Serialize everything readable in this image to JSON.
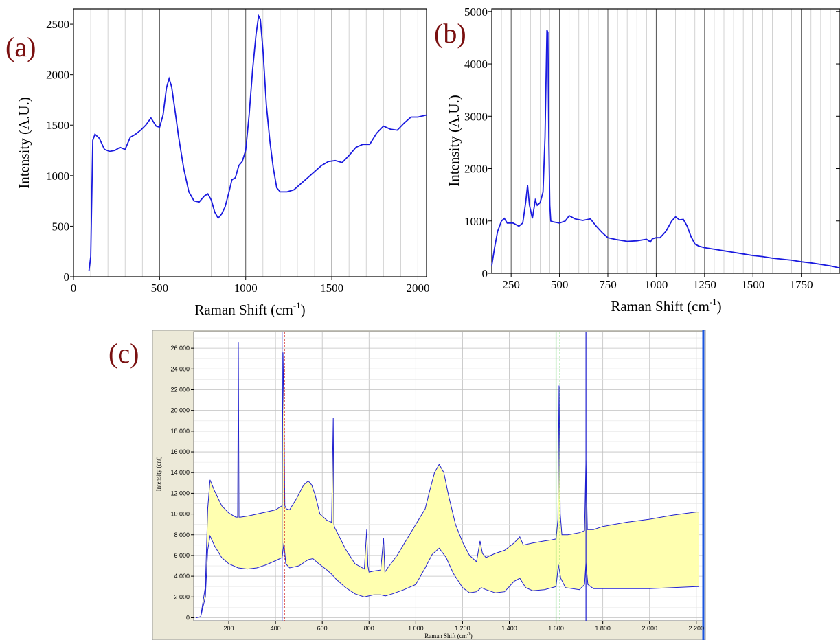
{
  "chart_data": [
    {
      "panel": "(a)",
      "type": "line",
      "xlabel": "Raman Shift (cm",
      "xlabel_sup": "-1",
      "xlabel_close": ")",
      "ylabel": "Intensity (A.U.)",
      "xlim": [
        0,
        2050
      ],
      "ylim": [
        0,
        2650
      ],
      "xticks": [
        0,
        500,
        1000,
        1500,
        2000
      ],
      "yticks": [
        0,
        500,
        1000,
        1500,
        2000,
        2500
      ],
      "grid": true,
      "series": [
        {
          "color": "#1a1adf",
          "x": [
            90,
            100,
            112,
            125,
            150,
            180,
            210,
            240,
            270,
            300,
            330,
            360,
            390,
            420,
            450,
            480,
            500,
            520,
            540,
            555,
            570,
            590,
            610,
            640,
            670,
            700,
            730,
            760,
            780,
            800,
            820,
            840,
            860,
            880,
            900,
            920,
            940,
            960,
            980,
            1000,
            1020,
            1040,
            1060,
            1075,
            1085,
            1100,
            1120,
            1140,
            1160,
            1180,
            1200,
            1220,
            1240,
            1280,
            1320,
            1360,
            1400,
            1440,
            1480,
            1520,
            1560,
            1600,
            1640,
            1680,
            1720,
            1760,
            1800,
            1840,
            1880,
            1920,
            1960,
            2000,
            2050
          ],
          "y": [
            60,
            200,
            1350,
            1410,
            1370,
            1260,
            1240,
            1250,
            1280,
            1260,
            1380,
            1410,
            1450,
            1500,
            1570,
            1490,
            1480,
            1600,
            1870,
            1960,
            1880,
            1640,
            1390,
            1070,
            840,
            750,
            740,
            800,
            820,
            760,
            640,
            580,
            620,
            690,
            820,
            960,
            980,
            1100,
            1140,
            1250,
            1600,
            2050,
            2400,
            2580,
            2550,
            2250,
            1700,
            1350,
            1080,
            880,
            840,
            840,
            840,
            860,
            920,
            980,
            1040,
            1100,
            1140,
            1150,
            1130,
            1200,
            1280,
            1310,
            1310,
            1420,
            1490,
            1460,
            1450,
            1520,
            1580,
            1580,
            1600
          ]
        }
      ]
    },
    {
      "panel": "(b)",
      "type": "line",
      "xlabel": "Raman Shift (cm",
      "xlabel_sup": "-1",
      "xlabel_close": ")",
      "ylabel": "Intensity (A.U.)",
      "xlim": [
        150,
        1950
      ],
      "ylim": [
        0,
        5050
      ],
      "xticks": [
        250,
        500,
        750,
        1000,
        1250,
        1500,
        1750
      ],
      "yticks": [
        0,
        1000,
        2000,
        3000,
        4000,
        5000
      ],
      "grid": true,
      "series": [
        {
          "color": "#1a1adf",
          "x": [
            150,
            165,
            180,
            200,
            215,
            230,
            260,
            290,
            310,
            325,
            335,
            345,
            360,
            375,
            385,
            400,
            415,
            425,
            435,
            440,
            445,
            450,
            455,
            470,
            500,
            530,
            550,
            580,
            620,
            660,
            690,
            720,
            750,
            800,
            850,
            900,
            950,
            970,
            980,
            1000,
            1020,
            1050,
            1080,
            1100,
            1120,
            1140,
            1160,
            1180,
            1200,
            1220,
            1250,
            1300,
            1350,
            1400,
            1450,
            1500,
            1550,
            1600,
            1650,
            1700,
            1750,
            1800,
            1850,
            1900,
            1950
          ],
          "y": [
            150,
            500,
            800,
            1000,
            1050,
            960,
            960,
            900,
            960,
            1350,
            1680,
            1300,
            1050,
            1400,
            1300,
            1350,
            1550,
            2600,
            4650,
            4600,
            2500,
            1300,
            1000,
            980,
            960,
            1000,
            1100,
            1040,
            1010,
            1040,
            900,
            780,
            680,
            640,
            610,
            620,
            650,
            600,
            660,
            680,
            680,
            800,
            1000,
            1080,
            1020,
            1030,
            900,
            700,
            560,
            520,
            490,
            460,
            430,
            400,
            370,
            340,
            320,
            290,
            270,
            250,
            220,
            200,
            170,
            140,
            100
          ]
        }
      ]
    },
    {
      "panel": "(c)",
      "type": "area",
      "xlabel": "Raman Shift (cm",
      "xlabel_sup": "-1",
      "xlabel_close": ")",
      "ylabel": "Intensity (cnt)",
      "xlim": [
        50,
        2230
      ],
      "ylim": [
        -300,
        27600
      ],
      "xticks": [
        200,
        400,
        600,
        800,
        1000,
        1200,
        1400,
        1600,
        1800,
        2000,
        2200
      ],
      "xtick_labels": [
        "200",
        "400",
        "600",
        "800",
        "1 000",
        "1 200",
        "1 400",
        "1 600",
        "1 800",
        "2 000",
        "2 200"
      ],
      "yticks": [
        0,
        2000,
        4000,
        6000,
        8000,
        10000,
        12000,
        14000,
        16000,
        18000,
        20000,
        22000,
        24000,
        26000
      ],
      "ytick_labels": [
        "0",
        "2 000",
        "4 000",
        "6 000",
        "8 000",
        "10 000",
        "12 000",
        "14 000",
        "16 000",
        "18 000",
        "20 000",
        "22 000",
        "24 000",
        "26 000"
      ],
      "grid": true,
      "fill_color": "#ffffb0",
      "line_color": "#2020d0",
      "markers": [
        {
          "x": 428,
          "color": "#2020d0",
          "style": "solid"
        },
        {
          "x": 438,
          "color": "#d02020",
          "style": "dashed"
        },
        {
          "x": 1600,
          "color": "#30c030",
          "style": "solid"
        },
        {
          "x": 1617,
          "color": "#30c030",
          "style": "dashed"
        },
        {
          "x": 1728,
          "color": "#2020d0",
          "style": "solid"
        }
      ],
      "series": [
        {
          "name": "upper",
          "x": [
            60,
            80,
            100,
            110,
            120,
            140,
            170,
            200,
            230,
            238,
            241,
            244,
            250,
            280,
            320,
            360,
            400,
            428,
            432,
            436,
            440,
            446,
            460,
            490,
            520,
            540,
            555,
            570,
            590,
            620,
            640,
            647,
            650,
            653,
            660,
            700,
            740,
            780,
            790,
            795,
            800,
            820,
            850,
            862,
            868,
            880,
            920,
            960,
            1000,
            1040,
            1060,
            1080,
            1100,
            1120,
            1140,
            1170,
            1200,
            1230,
            1260,
            1275,
            1285,
            1300,
            1340,
            1380,
            1420,
            1445,
            1460,
            1500,
            1550,
            1580,
            1600,
            1608,
            1613,
            1618,
            1625,
            1650,
            1700,
            1722,
            1728,
            1734,
            1760,
            1800,
            1900,
            2000,
            2100,
            2200,
            2210
          ],
          "y": [
            0,
            100,
            3000,
            10500,
            13300,
            12200,
            10800,
            10100,
            9700,
            9700,
            26600,
            9700,
            9700,
            9800,
            10000,
            10200,
            10400,
            10800,
            25600,
            20000,
            10800,
            10500,
            10400,
            11500,
            12800,
            13200,
            12800,
            11800,
            10000,
            9400,
            9200,
            19300,
            9000,
            8700,
            8400,
            6600,
            5200,
            4700,
            8500,
            5000,
            4400,
            4500,
            4600,
            7700,
            4400,
            4800,
            6000,
            7500,
            9000,
            10500,
            12300,
            14000,
            14800,
            14000,
            11800,
            9000,
            7300,
            6000,
            5400,
            7400,
            6200,
            5800,
            6200,
            6500,
            7200,
            7800,
            7000,
            7200,
            7400,
            7500,
            7600,
            9500,
            22400,
            10000,
            8000,
            8000,
            8200,
            8400,
            15200,
            8500,
            8500,
            8800,
            9200,
            9500,
            9900,
            10200,
            10200
          ]
        },
        {
          "name": "lower",
          "x": [
            60,
            80,
            100,
            110,
            120,
            140,
            170,
            200,
            240,
            280,
            320,
            360,
            400,
            428,
            436,
            444,
            460,
            500,
            540,
            560,
            580,
            620,
            640,
            660,
            700,
            740,
            780,
            800,
            820,
            850,
            870,
            900,
            950,
            1000,
            1040,
            1070,
            1100,
            1130,
            1160,
            1200,
            1230,
            1260,
            1280,
            1300,
            1340,
            1380,
            1420,
            1445,
            1470,
            1500,
            1550,
            1600,
            1610,
            1620,
            1640,
            1700,
            1722,
            1728,
            1736,
            1760,
            1800,
            1900,
            2000,
            2100,
            2200,
            2210
          ],
          "y": [
            0,
            100,
            2000,
            6500,
            7900,
            6900,
            5800,
            5200,
            4800,
            4700,
            4800,
            5100,
            5500,
            5800,
            7200,
            5200,
            4800,
            5000,
            5600,
            5700,
            5300,
            4600,
            4200,
            3700,
            2900,
            2300,
            2000,
            2100,
            2200,
            2200,
            2100,
            2300,
            2700,
            3200,
            4800,
            6100,
            6700,
            5800,
            4300,
            2900,
            2400,
            2500,
            2900,
            2700,
            2400,
            2500,
            3500,
            3800,
            2900,
            2600,
            2700,
            3000,
            5100,
            3800,
            2900,
            2700,
            3200,
            5300,
            3200,
            2800,
            2800,
            2800,
            2800,
            2900,
            3000,
            3000
          ]
        }
      ]
    }
  ]
}
